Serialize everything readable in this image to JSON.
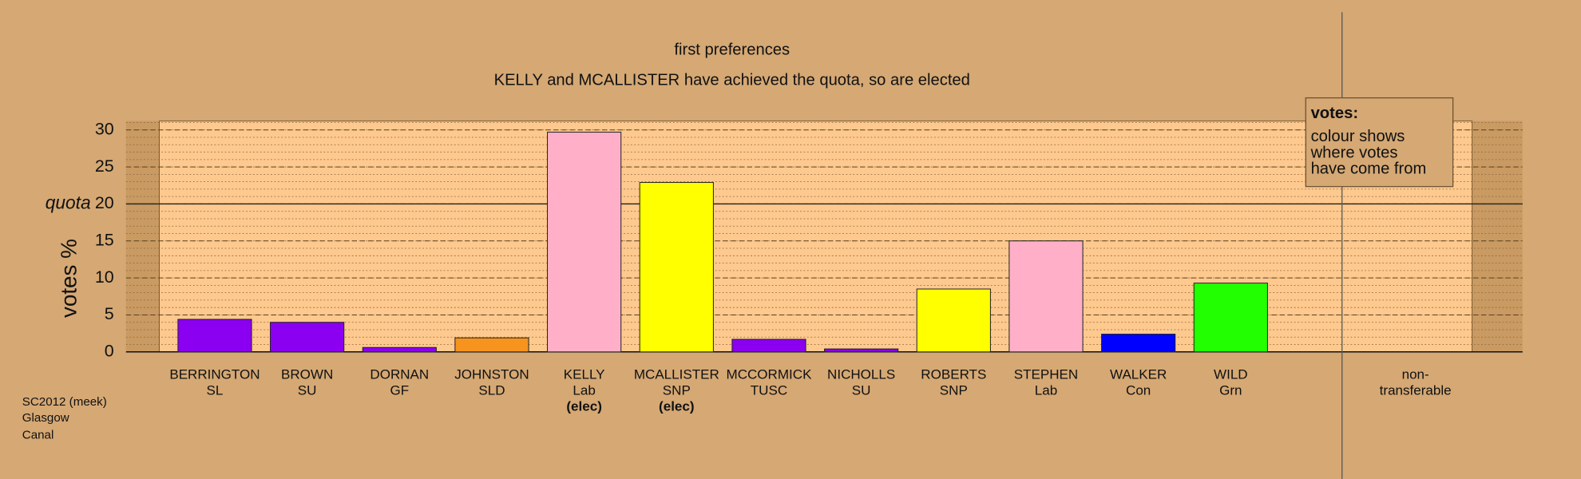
{
  "chart_data": {
    "type": "bar",
    "title": "first preferences",
    "subtitle": "KELLY and MCALLISTER have achieved the quota, so are elected",
    "ylabel": "votes %",
    "categories": [
      "BERRINGTON",
      "BROWN",
      "DORNAN",
      "JOHNSTON",
      "KELLY",
      "MCALLISTER",
      "MCCORMICK",
      "NICHOLLS",
      "ROBERTS",
      "STEPHEN",
      "WALKER",
      "WILD",
      "non-"
    ],
    "parties": [
      "SL",
      "SU",
      "GF",
      "SLD",
      "Lab",
      "SNP",
      "TUSC",
      "SU",
      "SNP",
      "Lab",
      "Con",
      "Grn",
      "transferable"
    ],
    "notes": [
      null,
      null,
      null,
      null,
      "(elec)",
      "(elec)",
      null,
      null,
      null,
      null,
      null,
      null,
      null
    ],
    "values": [
      4.4,
      4.0,
      0.6,
      1.9,
      29.7,
      22.9,
      1.7,
      0.4,
      8.5,
      15.0,
      2.4,
      9.3,
      null
    ],
    "colors": [
      "#8b00f0",
      "#8b00f0",
      "#8b00f0",
      "#f7941d",
      "#ffb0c8",
      "#ffff00",
      "#8b00f0",
      "#8b00f0",
      "#ffff00",
      "#ffb0c8",
      "#0000ff",
      "#22ff00",
      null
    ],
    "ylim": [
      0,
      31.2
    ],
    "yticks": [
      0,
      5,
      10,
      15,
      20,
      25,
      30
    ],
    "quota": {
      "value": 20,
      "label": "quota"
    },
    "grid": true,
    "legend": {
      "title": "votes:",
      "lines": [
        "colour shows",
        "where votes",
        "have come from"
      ]
    }
  },
  "footnote": [
    "SC2012 (meek)",
    "Glasgow",
    "Canal"
  ]
}
